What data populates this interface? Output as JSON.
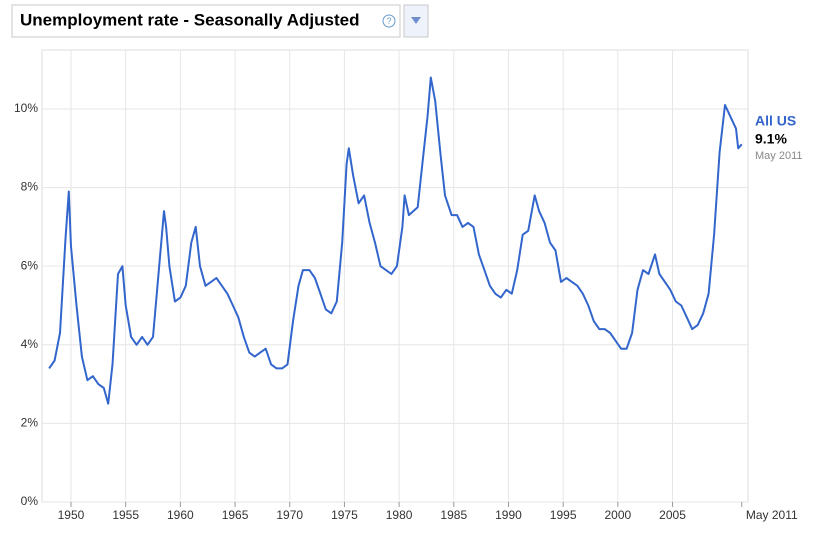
{
  "chart_data": {
    "type": "line",
    "title": "Unemployment rate - Seasonally Adjusted",
    "x": [
      1948.0,
      1948.5,
      1949.0,
      1949.5,
      1949.8,
      1950.0,
      1950.5,
      1951.0,
      1951.5,
      1952.0,
      1952.5,
      1953.0,
      1953.4,
      1953.8,
      1954.3,
      1954.7,
      1955.0,
      1955.5,
      1956.0,
      1956.5,
      1957.0,
      1957.5,
      1958.0,
      1958.5,
      1958.7,
      1959.0,
      1959.5,
      1960.0,
      1960.5,
      1961.0,
      1961.4,
      1961.8,
      1962.3,
      1962.8,
      1963.3,
      1963.8,
      1964.3,
      1964.8,
      1965.3,
      1965.8,
      1966.3,
      1966.8,
      1967.3,
      1967.8,
      1968.3,
      1968.8,
      1969.3,
      1969.8,
      1970.3,
      1970.8,
      1971.2,
      1971.8,
      1972.3,
      1972.8,
      1973.3,
      1973.8,
      1974.3,
      1974.8,
      1975.2,
      1975.4,
      1975.8,
      1976.3,
      1976.8,
      1977.3,
      1977.8,
      1978.3,
      1978.8,
      1979.3,
      1979.8,
      1980.3,
      1980.5,
      1980.9,
      1981.3,
      1981.7,
      1982.2,
      1982.6,
      1982.9,
      1983.3,
      1983.8,
      1984.2,
      1984.8,
      1985.3,
      1985.8,
      1986.3,
      1986.8,
      1987.3,
      1987.8,
      1988.3,
      1988.8,
      1989.3,
      1989.8,
      1990.3,
      1990.8,
      1991.3,
      1991.8,
      1992.4,
      1992.8,
      1993.3,
      1993.8,
      1994.3,
      1994.8,
      1995.3,
      1995.8,
      1996.3,
      1996.8,
      1997.3,
      1997.8,
      1998.3,
      1998.8,
      1999.3,
      1999.8,
      2000.3,
      2000.8,
      2001.3,
      2001.8,
      2002.3,
      2002.8,
      2003.4,
      2003.8,
      2004.3,
      2004.8,
      2005.3,
      2005.8,
      2006.3,
      2006.8,
      2007.3,
      2007.8,
      2008.3,
      2008.8,
      2009.3,
      2009.8,
      2010.3,
      2010.8,
      2011.0,
      2011.33
    ],
    "series": [
      {
        "name": "All US",
        "color": "#3366cc",
        "values": [
          3.4,
          3.6,
          4.3,
          6.7,
          7.9,
          6.5,
          5.0,
          3.7,
          3.1,
          3.2,
          3.0,
          2.9,
          2.5,
          3.5,
          5.8,
          6.0,
          5.0,
          4.2,
          4.0,
          4.2,
          4.0,
          4.2,
          5.8,
          7.4,
          7.0,
          6.0,
          5.1,
          5.2,
          5.5,
          6.6,
          7.0,
          6.0,
          5.5,
          5.6,
          5.7,
          5.5,
          5.3,
          5.0,
          4.7,
          4.2,
          3.8,
          3.7,
          3.8,
          3.9,
          3.5,
          3.4,
          3.4,
          3.5,
          4.6,
          5.5,
          5.9,
          5.9,
          5.7,
          5.3,
          4.9,
          4.8,
          5.1,
          6.6,
          8.6,
          9.0,
          8.3,
          7.6,
          7.8,
          7.1,
          6.6,
          6.0,
          5.9,
          5.8,
          6.0,
          7.0,
          7.8,
          7.3,
          7.4,
          7.5,
          8.8,
          9.8,
          10.8,
          10.2,
          8.8,
          7.8,
          7.3,
          7.3,
          7.0,
          7.1,
          7.0,
          6.3,
          5.9,
          5.5,
          5.3,
          5.2,
          5.4,
          5.3,
          5.9,
          6.8,
          6.9,
          7.8,
          7.4,
          7.1,
          6.6,
          6.4,
          5.6,
          5.7,
          5.6,
          5.5,
          5.3,
          5.0,
          4.6,
          4.4,
          4.4,
          4.3,
          4.1,
          3.9,
          3.9,
          4.3,
          5.4,
          5.9,
          5.8,
          6.3,
          5.8,
          5.6,
          5.4,
          5.1,
          5.0,
          4.7,
          4.4,
          4.5,
          4.8,
          5.3,
          6.8,
          8.9,
          10.1,
          9.8,
          9.5,
          9.0,
          9.1
        ],
        "last_label": "9.1%"
      }
    ],
    "xlim": [
      1947.35,
      2011.9
    ],
    "xticks": [
      1950,
      1955,
      1960,
      1965,
      1970,
      1975,
      1980,
      1985,
      1990,
      1995,
      2000,
      2005,
      {
        "value": 2011.33,
        "label": "May 2011"
      }
    ],
    "ylim": [
      0,
      11.5
    ],
    "yticks": [
      {
        "value": 0,
        "label": "0%"
      },
      {
        "value": 2,
        "label": "2%"
      },
      {
        "value": 4,
        "label": "4%"
      },
      {
        "value": 6,
        "label": "6%"
      },
      {
        "value": 8,
        "label": "8%"
      },
      {
        "value": 10,
        "label": "10%"
      }
    ],
    "grid": true
  }
}
